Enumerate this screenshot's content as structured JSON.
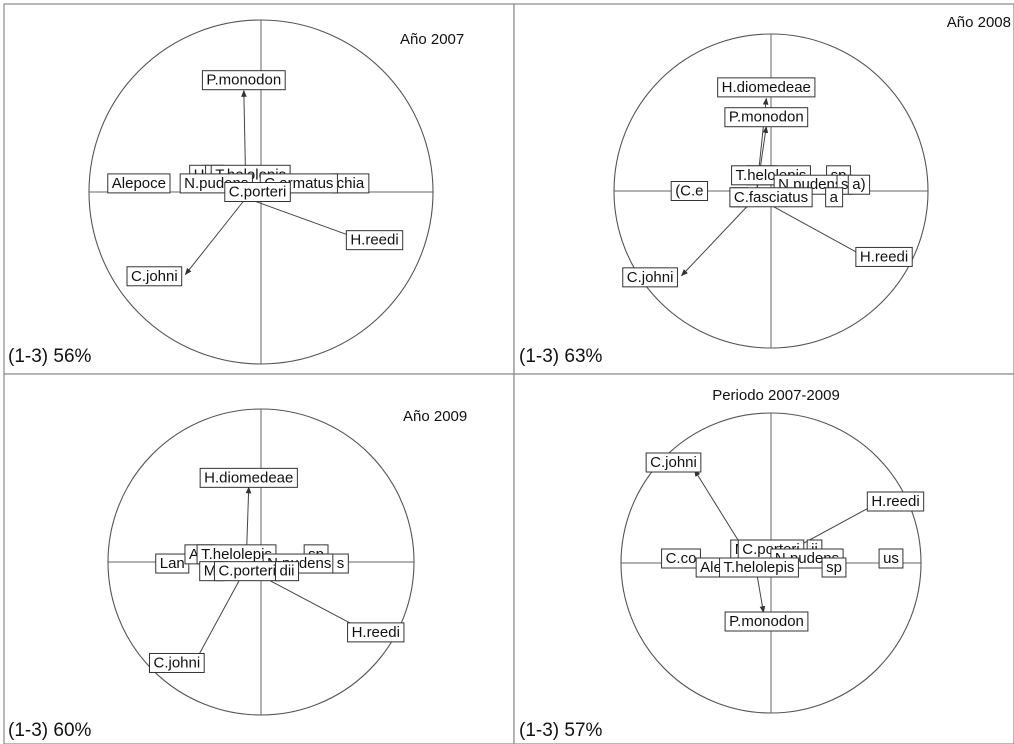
{
  "chart_data": [
    {
      "type": "biplot",
      "title": "Año 2007",
      "variance_text": "(1-3) 56%",
      "arrows": [
        {
          "name": "P.monodon",
          "x": -0.1,
          "y": 0.59
        },
        {
          "name": "H.reedi",
          "x": 0.59,
          "y": -0.28
        },
        {
          "name": "C.johni",
          "x": -0.44,
          "y": -0.48
        }
      ],
      "labels": [
        {
          "text": "P.monodon",
          "x": -0.1,
          "y": 0.65,
          "arrow": true
        },
        {
          "text": "Alepoce",
          "x": -0.71,
          "y": 0.05,
          "arrow": false
        },
        {
          "text": "chia",
          "x": 0.52,
          "y": 0.05,
          "arrow": false
        },
        {
          "text": "H",
          "x": -0.36,
          "y": 0.1,
          "arrow": false
        },
        {
          "text": "S",
          "x": -0.27,
          "y": 0.1,
          "arrow": false
        },
        {
          "text": "T.helolepis",
          "x": -0.06,
          "y": 0.1,
          "arrow": false
        },
        {
          "text": "N.pudens",
          "x": -0.26,
          "y": 0.05,
          "arrow": false
        },
        {
          "text": "C.armatus",
          "x": 0.22,
          "y": 0.05,
          "arrow": false
        },
        {
          "text": "C.porteri",
          "x": -0.02,
          "y": 0.0,
          "arrow": false
        },
        {
          "text": "H.reedi",
          "x": 0.66,
          "y": -0.28,
          "arrow": true
        },
        {
          "text": "C.johni",
          "x": -0.62,
          "y": -0.49,
          "arrow": true
        }
      ]
    },
    {
      "type": "biplot",
      "title": "Año 2008",
      "variance_text": "(1-3) 63%",
      "arrows": [
        {
          "name": "H.diomedeae",
          "x": -0.03,
          "y": 0.59
        },
        {
          "name": "P.monodon",
          "x": -0.03,
          "y": 0.41
        },
        {
          "name": "H.reedi",
          "x": 0.6,
          "y": -0.42
        },
        {
          "name": "C.johni",
          "x": -0.57,
          "y": -0.54
        }
      ],
      "labels": [
        {
          "text": "H.diomedeae",
          "x": -0.03,
          "y": 0.66,
          "arrow": true
        },
        {
          "text": "P.monodon",
          "x": -0.03,
          "y": 0.47,
          "arrow": true
        },
        {
          "text": "(C.e",
          "x": -0.52,
          "y": 0.0,
          "arrow": false
        },
        {
          "text": "Ale",
          "x": -0.06,
          "y": 0.1,
          "arrow": false
        },
        {
          "text": "T.helolepis",
          "x": 0.0,
          "y": 0.1,
          "arrow": false
        },
        {
          "text": "sp",
          "x": 0.43,
          "y": 0.1,
          "arrow": false
        },
        {
          "text": "N.pudens",
          "x": 0.25,
          "y": 0.04,
          "arrow": false
        },
        {
          "text": "s",
          "x": 0.47,
          "y": 0.04,
          "arrow": false
        },
        {
          "text": "a)",
          "x": 0.56,
          "y": 0.04,
          "arrow": false
        },
        {
          "text": "L",
          "x": -0.2,
          "y": -0.04,
          "arrow": false
        },
        {
          "text": "C.fasciatus",
          "x": 0.0,
          "y": -0.04,
          "arrow": false
        },
        {
          "text": "a",
          "x": 0.4,
          "y": -0.04,
          "arrow": false
        },
        {
          "text": "H.reedi",
          "x": 0.72,
          "y": -0.42,
          "arrow": true
        },
        {
          "text": "C.johni",
          "x": -0.77,
          "y": -0.55,
          "arrow": true
        }
      ]
    },
    {
      "type": "biplot",
      "title": "Año 2009",
      "variance_text": "(1-3) 60%",
      "arrows": [
        {
          "name": "H.diomedeae",
          "x": -0.08,
          "y": 0.49
        },
        {
          "name": "H.reedi",
          "x": 0.66,
          "y": -0.44
        },
        {
          "name": "C.johni",
          "x": -0.43,
          "y": -0.65
        }
      ],
      "labels": [
        {
          "text": "H.diomedeae",
          "x": -0.08,
          "y": 0.55,
          "arrow": true
        },
        {
          "text": "Lan",
          "x": -0.58,
          "y": -0.01,
          "arrow": false
        },
        {
          "text": "Ale",
          "x": -0.4,
          "y": 0.05,
          "arrow": false
        },
        {
          "text": "T.helolepis",
          "x": -0.16,
          "y": 0.05,
          "arrow": false
        },
        {
          "text": "sp",
          "x": 0.36,
          "y": 0.05,
          "arrow": false
        },
        {
          "text": "N.pudens",
          "x": 0.25,
          "y": -0.01,
          "arrow": false
        },
        {
          "text": "s",
          "x": 0.52,
          "y": -0.01,
          "arrow": false
        },
        {
          "text": "M.",
          "x": -0.32,
          "y": -0.06,
          "arrow": false
        },
        {
          "text": "C.porteri",
          "x": -0.09,
          "y": -0.06,
          "arrow": false
        },
        {
          "text": "dii",
          "x": 0.17,
          "y": -0.06,
          "arrow": false
        },
        {
          "text": "H.reedi",
          "x": 0.75,
          "y": -0.46,
          "arrow": true
        },
        {
          "text": "C.johni",
          "x": -0.55,
          "y": -0.66,
          "arrow": true
        }
      ]
    },
    {
      "type": "biplot",
      "title": "Periodo 2007-2009",
      "variance_text": "(1-3) 57%",
      "arrows": [
        {
          "name": "C.johni",
          "x": -0.51,
          "y": 0.62
        },
        {
          "name": "H.reedi",
          "x": 0.73,
          "y": 0.41
        },
        {
          "name": "P.monodon",
          "x": -0.05,
          "y": -0.33
        }
      ],
      "labels": [
        {
          "text": "C.johni",
          "x": -0.65,
          "y": 0.67,
          "arrow": true
        },
        {
          "text": "H.reedi",
          "x": 0.83,
          "y": 0.41,
          "arrow": true
        },
        {
          "text": "M",
          "x": -0.2,
          "y": 0.09,
          "arrow": false
        },
        {
          "text": "C.porteri",
          "x": 0.0,
          "y": 0.09,
          "arrow": false
        },
        {
          "text": "ii",
          "x": 0.29,
          "y": 0.09,
          "arrow": false
        },
        {
          "text": "C.co",
          "x": -0.6,
          "y": 0.03,
          "arrow": false
        },
        {
          "text": "N.pudens",
          "x": 0.24,
          "y": 0.03,
          "arrow": false
        },
        {
          "text": "us",
          "x": 0.8,
          "y": 0.03,
          "arrow": false
        },
        {
          "text": "Ale",
          "x": -0.4,
          "y": -0.03,
          "arrow": false
        },
        {
          "text": "T.helolepis",
          "x": -0.08,
          "y": -0.03,
          "arrow": false
        },
        {
          "text": "sp",
          "x": 0.42,
          "y": -0.03,
          "arrow": false
        },
        {
          "text": "P.monodon",
          "x": -0.03,
          "y": -0.39,
          "arrow": true
        }
      ]
    }
  ]
}
